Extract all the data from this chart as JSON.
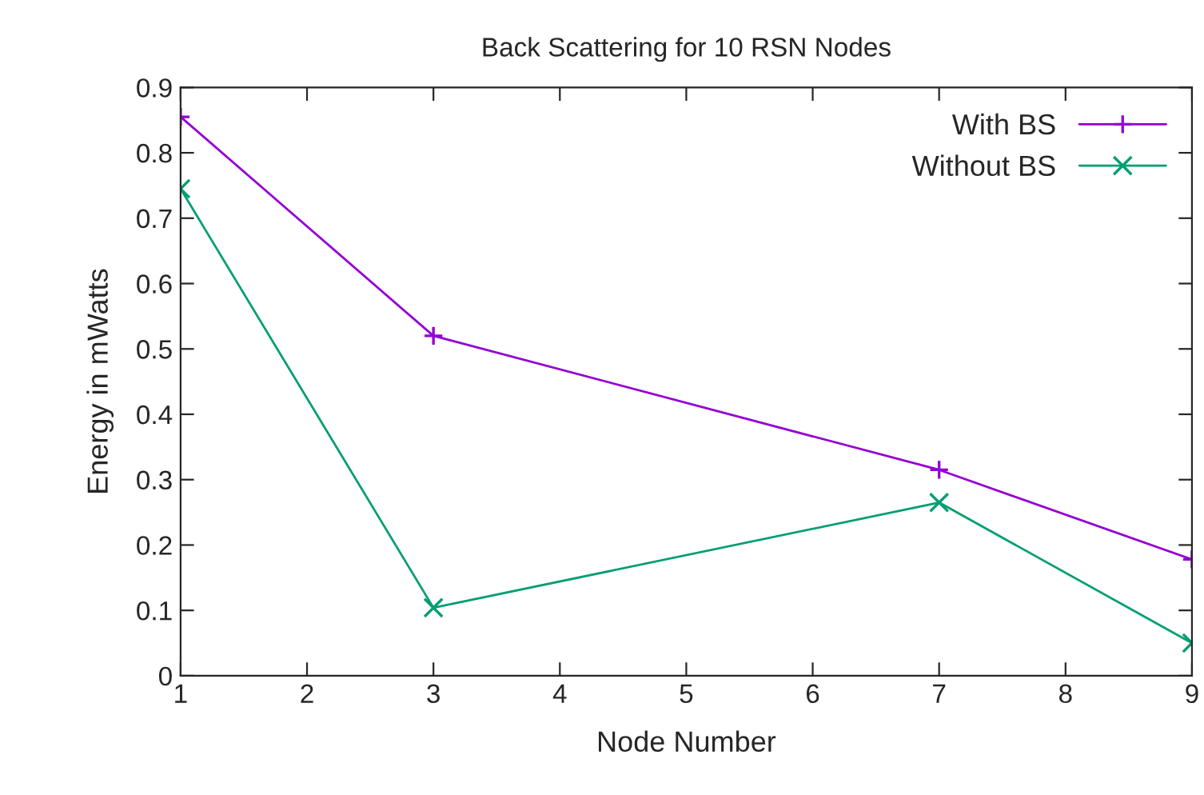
{
  "chart_data": {
    "type": "line",
    "title": "Back Scattering for 10 RSN Nodes",
    "xlabel": "Node Number",
    "ylabel": "Energy in mWatts",
    "x": [
      1,
      3,
      7,
      9
    ],
    "series": [
      {
        "name": "With BS",
        "color": "#9400d3",
        "marker": "plus",
        "values": [
          0.855,
          0.52,
          0.315,
          0.178
        ]
      },
      {
        "name": "Without BS",
        "color": "#009e73",
        "marker": "cross",
        "values": [
          0.745,
          0.104,
          0.265,
          0.05
        ]
      }
    ],
    "xlim": [
      1,
      9
    ],
    "xticks": [
      1,
      2,
      3,
      4,
      5,
      6,
      7,
      8,
      9
    ],
    "ylim": [
      0,
      0.9
    ],
    "yticks": [
      0,
      0.1,
      0.2,
      0.3,
      0.4,
      0.5,
      0.6,
      0.7,
      0.8,
      0.9
    ],
    "grid": false,
    "legend": "top right",
    "line_style": "solid"
  }
}
